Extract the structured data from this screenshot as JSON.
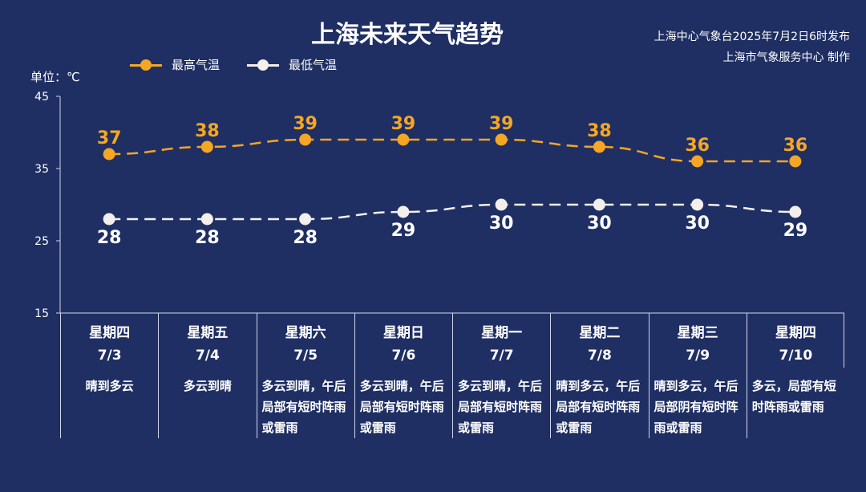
{
  "header": {
    "title": "上海未来天气趋势",
    "source_line1": "上海中心气象台2025年7月2日6时发布",
    "source_line2": "上海市气象服务中心 制作"
  },
  "legend": {
    "high_label": "最高气温",
    "low_label": "最低气温"
  },
  "unit_label": "单位：℃",
  "colors": {
    "background": "#1f2f63",
    "high": "#f5a623",
    "low": "#f3efea"
  },
  "chart_data": {
    "type": "line",
    "categories": [
      "7/3",
      "7/4",
      "7/5",
      "7/6",
      "7/7",
      "7/8",
      "7/9",
      "7/10"
    ],
    "series": [
      {
        "name": "最高气温",
        "values": [
          37,
          38,
          39,
          39,
          39,
          38,
          36,
          36
        ]
      },
      {
        "name": "最低气温",
        "values": [
          28,
          28,
          28,
          29,
          30,
          30,
          30,
          29
        ]
      }
    ],
    "ylim": [
      15,
      45
    ],
    "yticks": [
      15,
      25,
      35,
      45
    ],
    "ylabel": "单位：℃",
    "line_style": "dashed",
    "legend_position": "top-left"
  },
  "days": [
    {
      "weekday": "星期四",
      "date": "7/3",
      "weather": "晴到多云"
    },
    {
      "weekday": "星期五",
      "date": "7/4",
      "weather": "多云到晴"
    },
    {
      "weekday": "星期六",
      "date": "7/5",
      "weather": "多云到晴，午后局部有短时阵雨或雷雨"
    },
    {
      "weekday": "星期日",
      "date": "7/6",
      "weather": "多云到晴，午后局部有短时阵雨或雷雨"
    },
    {
      "weekday": "星期一",
      "date": "7/7",
      "weather": "多云到晴，午后局部有短时阵雨或雷雨"
    },
    {
      "weekday": "星期二",
      "date": "7/8",
      "weather": "晴到多云，午后局部有短时阵雨或雷雨"
    },
    {
      "weekday": "星期三",
      "date": "7/9",
      "weather": "晴到多云，午后局部阴有短时阵雨或雷雨"
    },
    {
      "weekday": "星期四",
      "date": "7/10",
      "weather": "多云，局部有短时阵雨或雷雨"
    }
  ]
}
